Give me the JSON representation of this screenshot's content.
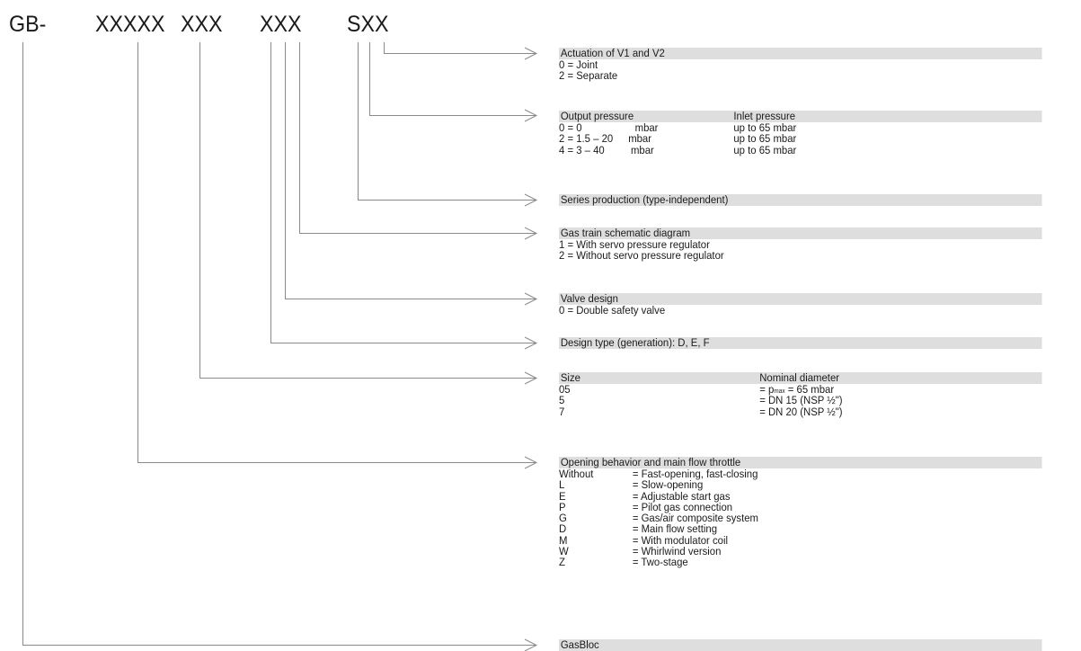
{
  "code_parts": [
    "GB-",
    "XXXXX",
    "XXX",
    "XXX",
    "SXX"
  ],
  "actuation": {
    "title": "Actuation of V1 and V2",
    "lines": [
      "0 = Joint",
      "2 = Separate"
    ]
  },
  "output_pressure": {
    "title_left": "Output pressure",
    "title_right": "Inlet pressure",
    "rows": [
      {
        "code": "0 = 0",
        "unit": "mbar",
        "inlet": "up to 65 mbar"
      },
      {
        "code": "2 = 1.5 – 20",
        "unit": "mbar",
        "inlet": "up to 65 mbar"
      },
      {
        "code": "4 = 3 – 40",
        "unit": "mbar",
        "inlet": "up to 65 mbar"
      }
    ]
  },
  "series": {
    "title": "Series production (type-independent)"
  },
  "schematic": {
    "title": "Gas train schematic diagram",
    "lines": [
      "1 = With servo pressure regulator",
      "2 = Without servo pressure regulator"
    ]
  },
  "valve_design": {
    "title": "Valve design",
    "lines": [
      "0 = Double safety valve"
    ]
  },
  "design_type": {
    "title": "Design type (generation): D, E, F"
  },
  "size": {
    "title_left": "Size",
    "title_right": "Nominal diameter",
    "row0": {
      "code": "05",
      "pre": "= p",
      "sub": "max",
      "post": " = 65 mbar"
    },
    "rows": [
      {
        "code": "5",
        "value": "= DN 15 (NSP ½\")"
      },
      {
        "code": "7",
        "value": "= DN 20 (NSP ½\")"
      }
    ]
  },
  "opening": {
    "title": "Opening behavior and main flow throttle",
    "rows": [
      {
        "code": "Without",
        "desc": "= Fast-opening, fast-closing"
      },
      {
        "code": "L",
        "desc": "= Slow-opening"
      },
      {
        "code": "E",
        "desc": "= Adjustable start gas"
      },
      {
        "code": "P",
        "desc": "= Pilot gas connection"
      },
      {
        "code": "G",
        "desc": "= Gas/air composite system"
      },
      {
        "code": "D",
        "desc": "= Main flow setting"
      },
      {
        "code": "M",
        "desc": "= With modulator coil"
      },
      {
        "code": "W",
        "desc": "= Whirlwind version"
      },
      {
        "code": "Z",
        "desc": "= Two-stage"
      }
    ]
  },
  "gasbloc": {
    "title": "GasBloc"
  }
}
